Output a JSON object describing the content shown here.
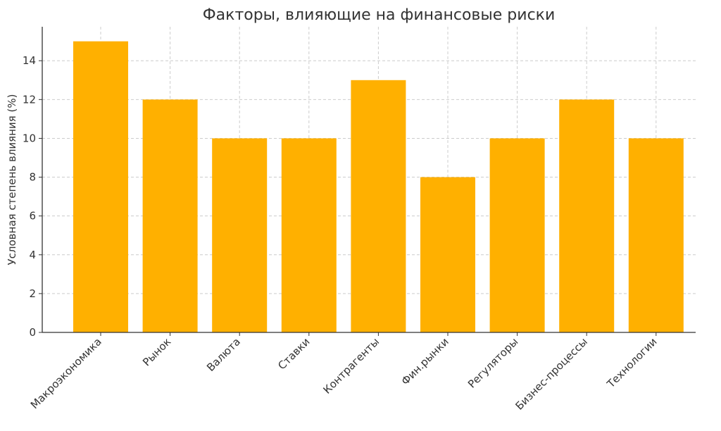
{
  "chart_data": {
    "type": "bar",
    "title": "Факторы, влияющие на финансовые риски",
    "xlabel": "",
    "ylabel": "Условная степень влияния (%)",
    "categories": [
      "Макроэкономика",
      "Рынок",
      "Валюта",
      "Ставки",
      "Контрагенты",
      "Фин.рынки",
      "Регуляторы",
      "Бизнес-процессы",
      "Технологии"
    ],
    "values": [
      15,
      12,
      10,
      10,
      13,
      8,
      10,
      12,
      10
    ],
    "ylim": [
      0,
      15.75
    ],
    "yticks": [
      "0",
      "2",
      "4",
      "6",
      "8",
      "10",
      "12",
      "14"
    ],
    "grid": true,
    "bar_color": "#FFB000",
    "axis_color": "#333333",
    "grid_color": "#cccccc"
  }
}
